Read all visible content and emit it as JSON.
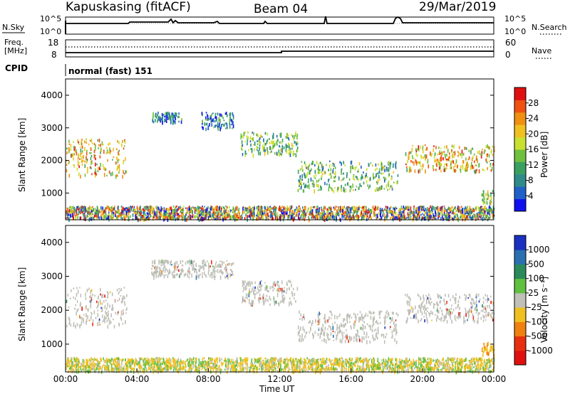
{
  "header": {
    "title_left": "Kapuskasing (fitACF)",
    "title_center": "Beam 04",
    "title_right": "29/Mar/2019"
  },
  "top_panels": {
    "nsky_label": "N.Sky",
    "nsky_ticks": [
      "10^5",
      "10^0"
    ],
    "nsearch_label": "N.Search",
    "freq_label_line1": "Freq.",
    "freq_label_line2": "[MHz]",
    "freq_ticks": [
      "18",
      "8"
    ],
    "nave_label": "Nave",
    "nave_ticks": [
      "60",
      "0"
    ],
    "cpid_label": "CPID",
    "cpid_value": "normal (fast) 151"
  },
  "x_axis": {
    "ticks": [
      "00:00",
      "04:00",
      "08:00",
      "12:00",
      "16:00",
      "20:00",
      "00:00"
    ],
    "label": "Time UT"
  },
  "chart_data": [
    {
      "type": "heatmap",
      "panel": "power",
      "ylabel": "Slant Range [km]",
      "yticks": [
        "1000",
        "2000",
        "3000",
        "4000"
      ],
      "ylim": [
        180,
        4500
      ],
      "xlim": [
        0,
        24
      ],
      "colorbar": {
        "label": "Power [dB]",
        "ticks": [
          "4",
          "8",
          "12",
          "16",
          "20",
          "24",
          "28"
        ],
        "range": [
          0,
          32
        ],
        "colors": [
          "#1010f0",
          "#2060c8",
          "#2f8a8a",
          "#3aa060",
          "#70c040",
          "#c8e030",
          "#f0c020",
          "#f09010",
          "#f05010",
          "#e01010"
        ]
      },
      "echo_bands": [
        {
          "t_start": 0.0,
          "t_end": 24.0,
          "r_low": 230,
          "r_high": 620,
          "level": "mixed"
        },
        {
          "t_start": 0.0,
          "t_end": 3.4,
          "r_low": 1550,
          "r_high": 2700,
          "level": "strong"
        },
        {
          "t_start": 4.8,
          "t_end": 6.5,
          "r_low": 3200,
          "r_high": 3500,
          "level": "weak"
        },
        {
          "t_start": 7.6,
          "t_end": 9.4,
          "r_low": 3000,
          "r_high": 3500,
          "level": "weak"
        },
        {
          "t_start": 9.8,
          "t_end": 13.0,
          "r_low": 2200,
          "r_high": 2900,
          "level": "medium"
        },
        {
          "t_start": 13.0,
          "t_end": 18.6,
          "r_low": 1100,
          "r_high": 2000,
          "level": "medium"
        },
        {
          "t_start": 19.0,
          "t_end": 24.0,
          "r_low": 1700,
          "r_high": 2500,
          "level": "strong"
        },
        {
          "t_start": 23.3,
          "t_end": 24.0,
          "r_low": 700,
          "r_high": 1100,
          "level": "medium"
        }
      ]
    },
    {
      "type": "heatmap",
      "panel": "velocity",
      "ylabel": "Slant Range [km]",
      "yticks": [
        "1000",
        "2000",
        "3000",
        "4000"
      ],
      "ylim": [
        180,
        4500
      ],
      "xlim": [
        0,
        24
      ],
      "colorbar": {
        "label": "Velocity [m s⁻¹]",
        "ticks": [
          "1000",
          "500",
          "100",
          "25",
          "-25",
          "-100",
          "-500",
          "-1000"
        ],
        "colors": [
          "#1a30c0",
          "#2a70b0",
          "#2a8a5a",
          "#60c040",
          "#c0c0b8",
          "#f0c020",
          "#f08010",
          "#e83010",
          "#e01010"
        ]
      },
      "echo_bands": [
        {
          "t_start": 0.0,
          "t_end": 24.0,
          "r_low": 230,
          "r_high": 620,
          "level": "green-yellow"
        },
        {
          "t_start": 0.0,
          "t_end": 3.4,
          "r_low": 1550,
          "r_high": 2700,
          "level": "gray"
        },
        {
          "t_start": 4.8,
          "t_end": 9.4,
          "r_low": 3000,
          "r_high": 3500,
          "level": "gray"
        },
        {
          "t_start": 9.8,
          "t_end": 13.0,
          "r_low": 2200,
          "r_high": 2900,
          "level": "gray"
        },
        {
          "t_start": 13.0,
          "t_end": 18.6,
          "r_low": 1100,
          "r_high": 2000,
          "level": "gray"
        },
        {
          "t_start": 19.0,
          "t_end": 24.0,
          "r_low": 1700,
          "r_high": 2500,
          "level": "gray"
        },
        {
          "t_start": 23.3,
          "t_end": 24.0,
          "r_low": 700,
          "r_high": 1100,
          "level": "yellow"
        }
      ]
    }
  ]
}
